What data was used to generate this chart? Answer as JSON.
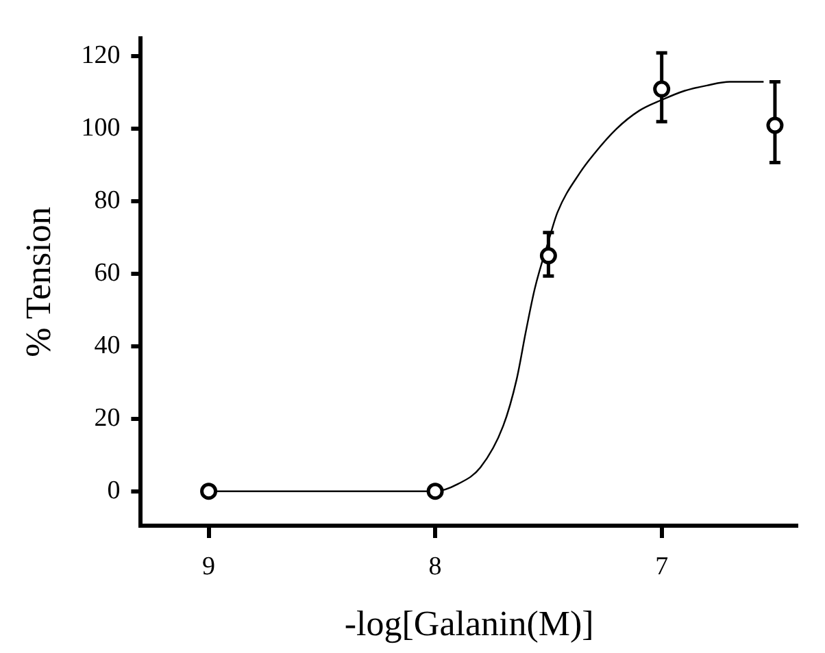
{
  "chart_data": {
    "type": "scatter",
    "xlabel": "-log[Galanin(M)]",
    "ylabel": "% Tension",
    "xlim": [
      9.3,
      6.4
    ],
    "xticks": [
      9,
      8,
      7
    ],
    "ylim": [
      -9.5,
      125
    ],
    "yticks": [
      0,
      20,
      40,
      60,
      80,
      100,
      120
    ],
    "grid": false,
    "legend": false,
    "series": [
      {
        "type": "line",
        "color": "#000000",
        "marker": "none",
        "x": [
          9,
          8,
          7.9,
          7.8,
          7.7,
          7.64,
          7.6,
          7.56,
          7.5,
          7.46,
          7.36,
          7.3,
          7.2,
          7.1,
          7,
          6.9,
          6.8,
          6.7,
          6.6,
          6.55
        ],
        "values": [
          0,
          0,
          2,
          6.6,
          18,
          31,
          44,
          56,
          69,
          77,
          88,
          93,
          100,
          105,
          108,
          110.5,
          112,
          113,
          113,
          113
        ]
      },
      {
        "type": "scatter",
        "color": "#000000",
        "marker": "circle",
        "x": [
          9,
          8,
          7.5,
          7,
          6.5
        ],
        "values": [
          0,
          0,
          65,
          111,
          101
        ],
        "errors": [
          null,
          null,
          [
            59.4,
            71.4
          ],
          [
            102,
            121
          ],
          [
            90.7,
            113
          ]
        ]
      }
    ]
  }
}
